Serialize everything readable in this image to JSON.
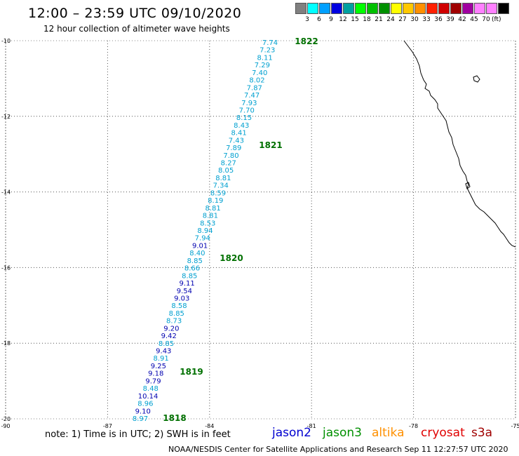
{
  "title": "12:00 – 23:59 UTC 09/10/2020",
  "subtitle": "12 hour collection of altimeter wave heights",
  "legend": {
    "colors": [
      "#808080",
      "#00ffff",
      "#00a0ff",
      "#0000e0",
      "#00a0a0",
      "#00ff00",
      "#00c000",
      "#009000",
      "#ffff00",
      "#ffc800",
      "#ff9000",
      "#ff2000",
      "#d00000",
      "#a00000",
      "#a000a0",
      "#ff80ff",
      "#ff80ff",
      "#000000"
    ],
    "labels": [
      "3",
      "6",
      "9",
      "12",
      "15",
      "18",
      "21",
      "24",
      "27",
      "30",
      "33",
      "36",
      "39",
      "42",
      "45",
      "70"
    ],
    "unit": "(ft)"
  },
  "map": {
    "x_ticks": [
      {
        "label": "-90",
        "value": -90
      },
      {
        "label": "-87",
        "value": -87
      },
      {
        "label": "-84",
        "value": -84
      },
      {
        "label": "-81",
        "value": -81
      },
      {
        "label": "-78",
        "value": -78
      },
      {
        "label": "-75",
        "value": -75
      }
    ],
    "y_ticks": [
      {
        "label": "-10",
        "value": -10
      },
      {
        "label": "-12",
        "value": -12
      },
      {
        "label": "-14",
        "value": -14
      },
      {
        "label": "-16",
        "value": -16
      },
      {
        "label": "-18",
        "value": -18
      },
      {
        "label": "-20",
        "value": -20
      }
    ],
    "lon_range": [
      -90,
      -75
    ],
    "lat_range": [
      -20,
      -10
    ],
    "grid": "dotted",
    "series_colors": {
      "jason3": "#00a0d0",
      "jason2": "#0000b0",
      "time": "#007000"
    },
    "coast_color": "#000000"
  },
  "track": {
    "values": [
      {
        "v": "7.74",
        "c": "jason3"
      },
      {
        "v": "7.23",
        "c": "jason3"
      },
      {
        "v": "8.11",
        "c": "jason3"
      },
      {
        "v": "7.29",
        "c": "jason3"
      },
      {
        "v": "7.40",
        "c": "jason3"
      },
      {
        "v": "8.02",
        "c": "jason3"
      },
      {
        "v": "7.87",
        "c": "jason3"
      },
      {
        "v": "7.47",
        "c": "jason3"
      },
      {
        "v": "7.93",
        "c": "jason3"
      },
      {
        "v": "7.70",
        "c": "jason3"
      },
      {
        "v": "8.15",
        "c": "jason3"
      },
      {
        "v": "8.43",
        "c": "jason3"
      },
      {
        "v": "8.41",
        "c": "jason3"
      },
      {
        "v": "7.43",
        "c": "jason3"
      },
      {
        "v": "7.89",
        "c": "jason3"
      },
      {
        "v": "7.80",
        "c": "jason3"
      },
      {
        "v": "8.27",
        "c": "jason3"
      },
      {
        "v": "8.05",
        "c": "jason3"
      },
      {
        "v": "8.81",
        "c": "jason3"
      },
      {
        "v": "7.34",
        "c": "jason3"
      },
      {
        "v": "8.59",
        "c": "jason3"
      },
      {
        "v": "8.19",
        "c": "jason3"
      },
      {
        "v": "8.81",
        "c": "jason3"
      },
      {
        "v": "8.81",
        "c": "jason3"
      },
      {
        "v": "8.53",
        "c": "jason3"
      },
      {
        "v": "8.94",
        "c": "jason3"
      },
      {
        "v": "7.94",
        "c": "jason3"
      },
      {
        "v": "9.01",
        "c": "jason2"
      },
      {
        "v": "8.40",
        "c": "jason3"
      },
      {
        "v": "8.85",
        "c": "jason3"
      },
      {
        "v": "8.66",
        "c": "jason3"
      },
      {
        "v": "8.85",
        "c": "jason3"
      },
      {
        "v": "9.11",
        "c": "jason2"
      },
      {
        "v": "9.54",
        "c": "jason2"
      },
      {
        "v": "9.03",
        "c": "jason2"
      },
      {
        "v": "8.58",
        "c": "jason3"
      },
      {
        "v": "8.85",
        "c": "jason3"
      },
      {
        "v": "8.73",
        "c": "jason3"
      },
      {
        "v": "9.20",
        "c": "jason2"
      },
      {
        "v": "9.42",
        "c": "jason2"
      },
      {
        "v": "8.85",
        "c": "jason3"
      },
      {
        "v": "9.43",
        "c": "jason2"
      },
      {
        "v": "8.91",
        "c": "jason3"
      },
      {
        "v": "9.25",
        "c": "jason2"
      },
      {
        "v": "9.18",
        "c": "jason2"
      },
      {
        "v": "9.79",
        "c": "jason2"
      },
      {
        "v": "8.48",
        "c": "jason3"
      },
      {
        "v": "10.14",
        "c": "jason2"
      },
      {
        "v": "8.96",
        "c": "jason3"
      },
      {
        "v": "9.10",
        "c": "jason2"
      },
      {
        "v": "8.97",
        "c": "jason3"
      }
    ],
    "times": [
      "1822",
      "1821",
      "1820",
      "1819",
      "1818"
    ]
  },
  "note": "note: 1) Time is in UTC; 2) SWH is in feet",
  "satellites": [
    {
      "name": "jason2",
      "color": "#0000d0"
    },
    {
      "name": "jason3",
      "color": "#009000"
    },
    {
      "name": "altika",
      "color": "#ff9000"
    },
    {
      "name": "cryosat",
      "color": "#e00000"
    },
    {
      "name": "s3a",
      "color": "#a00000"
    }
  ],
  "credit": "NOAA/NESDIS Center for Satellite Applications and Research    Sep 11 12:27:57 UTC 2020"
}
